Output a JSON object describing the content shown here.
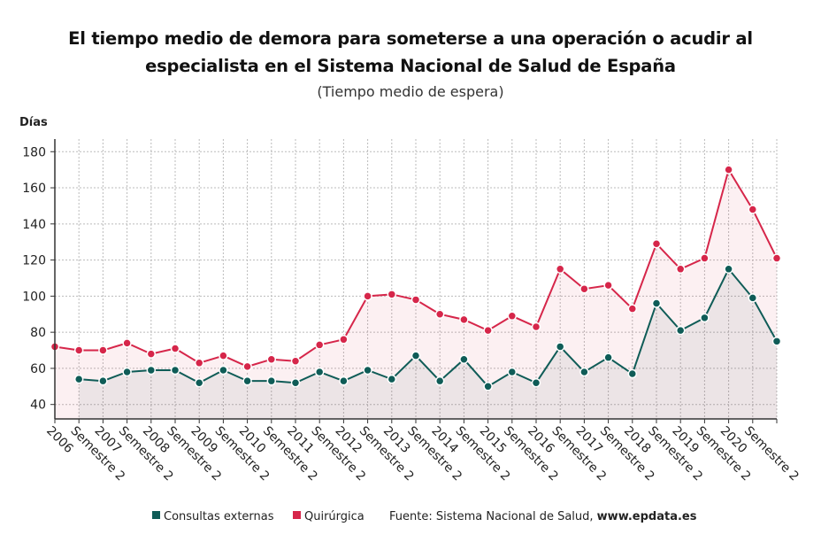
{
  "chart_data": {
    "type": "line",
    "title": "El tiempo medio de demora para someterse a una operación o acudir al especialista en el Sistema Nacional de Salud de España",
    "subtitle": "(Tiempo medio de espera)",
    "y_label": "Días",
    "categories": [
      "2006",
      "Semestre 2",
      "2007",
      "Semestre 2",
      "2008",
      "Semestre 2",
      "2009",
      "Semestre 2",
      "2010",
      "Semestre 2",
      "2011",
      "Semestre 2",
      "2012",
      "Semestre 2",
      "2013",
      "Semestre 2",
      "2014",
      "Semestre 2",
      "2015",
      "Semestre 2",
      "2016",
      "Semestre 2",
      "2017",
      "Semestre 2",
      "2018",
      "Semestre 2",
      "2019",
      "Semestre 2",
      "2020",
      "Semestre 2",
      null
    ],
    "series": [
      {
        "name": "Consultas externas",
        "color": "#0f5c57",
        "values": [
          null,
          54,
          53,
          58,
          59,
          59,
          52,
          59,
          53,
          53,
          52,
          58,
          53,
          59,
          54,
          67,
          53,
          65,
          50,
          58,
          52,
          72,
          58,
          66,
          57,
          96,
          81,
          88,
          115,
          99,
          75
        ]
      },
      {
        "name": "Quirúrgica",
        "color": "#d6264a",
        "values": [
          72,
          70,
          70,
          74,
          68,
          71,
          63,
          67,
          61,
          65,
          64,
          73,
          76,
          100,
          101,
          98,
          90,
          87,
          81,
          89,
          83,
          115,
          104,
          106,
          93,
          129,
          115,
          121,
          170,
          148,
          121
        ]
      }
    ],
    "ylim": [
      32,
      187
    ],
    "yticks": [
      40,
      60,
      80,
      100,
      120,
      140,
      160,
      180
    ],
    "grid": true,
    "source": "Fuente: Sistema Nacional de Salud, ",
    "source_site": "www.epdata.es"
  }
}
